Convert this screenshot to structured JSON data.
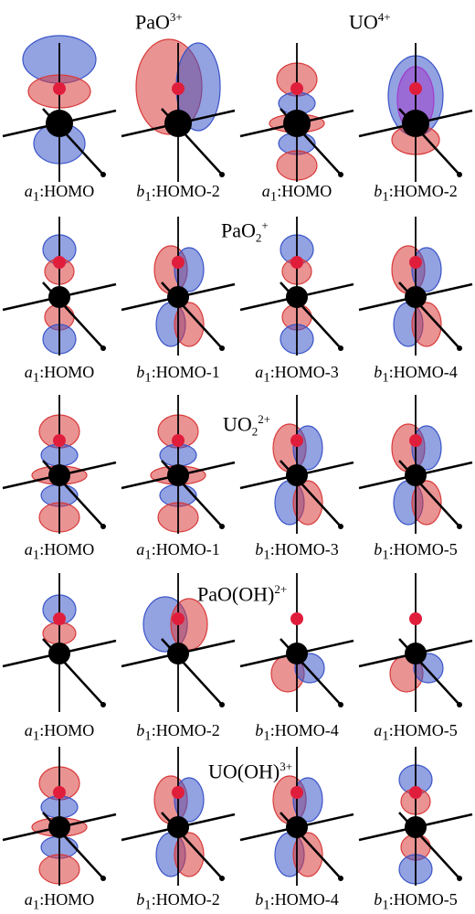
{
  "panels": [
    {
      "titles": [
        {
          "base": "PaO",
          "sup": "3+",
          "sub": ""
        },
        {
          "base": "UO",
          "sup": "4+",
          "sub": ""
        }
      ],
      "orbitals": [
        {
          "sym": "a",
          "idx": "1",
          "name": ":HOMO",
          "shape": "axial-big"
        },
        {
          "sym": "b",
          "idx": "1",
          "name": ":HOMO-2",
          "shape": "side-big"
        },
        {
          "sym": "a",
          "idx": "1",
          "name": ":HOMO",
          "shape": "axial-ring"
        },
        {
          "sym": "b",
          "idx": "1",
          "name": ":HOMO-2",
          "shape": "side-mixed"
        }
      ]
    },
    {
      "titles": [
        {
          "base": "PaO",
          "sup": "+",
          "sub": "2"
        }
      ],
      "orbitals": [
        {
          "sym": "a",
          "idx": "1",
          "name": ":HOMO",
          "shape": "axial"
        },
        {
          "sym": "b",
          "idx": "1",
          "name": ":HOMO-1",
          "shape": "side"
        },
        {
          "sym": "a",
          "idx": "1",
          "name": ":HOMO-3",
          "shape": "axial"
        },
        {
          "sym": "b",
          "idx": "1",
          "name": ":HOMO-4",
          "shape": "side"
        }
      ]
    },
    {
      "titles": [
        {
          "base": "UO",
          "sup": "2+",
          "sub": "2"
        }
      ],
      "orbitals": [
        {
          "sym": "a",
          "idx": "1",
          "name": ":HOMO",
          "shape": "axial-ring"
        },
        {
          "sym": "a",
          "idx": "1",
          "name": ":HOMO-1",
          "shape": "axial-ring"
        },
        {
          "sym": "b",
          "idx": "1",
          "name": ":HOMO-3",
          "shape": "side"
        },
        {
          "sym": "b",
          "idx": "1",
          "name": ":HOMO-5",
          "shape": "side"
        }
      ]
    },
    {
      "titles": [
        {
          "base": "PaO(OH)",
          "sup": "2+",
          "sub": ""
        }
      ],
      "orbitals": [
        {
          "sym": "a",
          "idx": "1",
          "name": ":HOMO",
          "shape": "axial-top"
        },
        {
          "sym": "b",
          "idx": "1",
          "name": ":HOMO-2",
          "shape": "side-top"
        },
        {
          "sym": "b",
          "idx": "1",
          "name": ":HOMO-4",
          "shape": "low-lobes"
        },
        {
          "sym": "a",
          "idx": "1",
          "name": ":HOMO-5",
          "shape": "low-lobes"
        }
      ]
    },
    {
      "titles": [
        {
          "base": "UO(OH)",
          "sup": "3+",
          "sub": ""
        }
      ],
      "orbitals": [
        {
          "sym": "a",
          "idx": "1",
          "name": ":HOMO",
          "shape": "axial-ring"
        },
        {
          "sym": "b",
          "idx": "1",
          "name": ":HOMO-2",
          "shape": "side"
        },
        {
          "sym": "b",
          "idx": "1",
          "name": ":HOMO-4",
          "shape": "side"
        },
        {
          "sym": "b",
          "idx": "1",
          "name": ":HOMO-5",
          "shape": "axial"
        }
      ]
    }
  ],
  "colors": {
    "red": "#d83a3a",
    "blue": "#3a55c8",
    "atom": "#000000",
    "oxygen": "#e01e3c"
  }
}
